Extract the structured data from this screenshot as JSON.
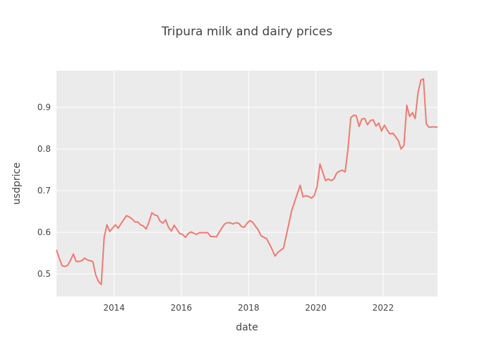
{
  "chart_data": {
    "type": "line",
    "title": "Tripura milk and dairy prices",
    "xlabel": "date",
    "ylabel": "usdprice",
    "xlim": [
      "2012-04-15",
      "2023-08-15"
    ],
    "ylim": [
      0.446,
      0.988
    ],
    "grid": true,
    "x_ticks": [
      "2014",
      "2016",
      "2018",
      "2020",
      "2022"
    ],
    "y_ticks": [
      0.5,
      0.6,
      0.7,
      0.8,
      0.9
    ],
    "y_tick_labels": [
      "0.5",
      "0.6",
      "0.7",
      "0.8",
      "0.9"
    ],
    "colors": {
      "line": "#ef7a72",
      "plot_bg": "#ebebeb",
      "grid": "#ffffff"
    },
    "series": [
      {
        "x": [
          "2012-04-15",
          "2012-05-15",
          "2012-06-15",
          "2012-07-15",
          "2012-08-15",
          "2012-09-15",
          "2012-10-15",
          "2012-11-15",
          "2012-12-15",
          "2013-01-15",
          "2013-02-15",
          "2013-03-15",
          "2013-04-15",
          "2013-05-15",
          "2013-06-15",
          "2013-07-15",
          "2013-08-15",
          "2013-09-15",
          "2013-10-15",
          "2013-11-15",
          "2013-12-15",
          "2014-01-15",
          "2014-02-15",
          "2014-03-15",
          "2014-04-15",
          "2014-05-15",
          "2014-06-15",
          "2014-07-15",
          "2014-08-15",
          "2014-09-15",
          "2014-10-15",
          "2014-11-15",
          "2014-12-15",
          "2015-01-15",
          "2015-02-15",
          "2015-03-15",
          "2015-04-15",
          "2015-05-15",
          "2015-06-15",
          "2015-07-15",
          "2015-08-15",
          "2015-09-15",
          "2015-10-15",
          "2015-11-15",
          "2015-12-15",
          "2016-01-15",
          "2016-02-15",
          "2016-03-15",
          "2016-04-15",
          "2016-05-15",
          "2016-06-15",
          "2016-07-15",
          "2016-08-15",
          "2016-09-15",
          "2016-10-15",
          "2016-11-15",
          "2016-12-15",
          "2017-01-15",
          "2017-02-15",
          "2017-03-15",
          "2017-04-15",
          "2017-05-15",
          "2017-06-15",
          "2017-07-15",
          "2017-08-15",
          "2017-09-15",
          "2017-10-15",
          "2017-11-15",
          "2017-12-15",
          "2018-01-15",
          "2018-02-15",
          "2018-03-15",
          "2018-04-15",
          "2018-05-15",
          "2018-06-15",
          "2018-07-15",
          "2018-08-15",
          "2018-09-15",
          "2018-10-15",
          "2018-11-15",
          "2018-12-15",
          "2019-01-15",
          "2019-04-15",
          "2019-07-15",
          "2019-08-15",
          "2019-09-15",
          "2019-10-15",
          "2019-11-15",
          "2019-12-15",
          "2020-01-15",
          "2020-02-15",
          "2020-03-15",
          "2020-04-15",
          "2020-05-15",
          "2020-06-15",
          "2020-07-15",
          "2020-08-15",
          "2020-09-15",
          "2020-10-15",
          "2020-11-15",
          "2020-12-15",
          "2021-01-15",
          "2021-02-15",
          "2021-03-15",
          "2021-04-15",
          "2021-05-15",
          "2021-06-15",
          "2021-07-15",
          "2021-08-15",
          "2021-09-15",
          "2021-10-15",
          "2021-11-15",
          "2021-12-15",
          "2022-01-15",
          "2022-02-15",
          "2022-03-15",
          "2022-04-15",
          "2022-05-15",
          "2022-06-15",
          "2022-07-15",
          "2022-08-15",
          "2022-09-15",
          "2022-10-15",
          "2022-11-15",
          "2022-12-15",
          "2023-01-15",
          "2023-02-15",
          "2023-03-15",
          "2023-04-15",
          "2023-05-15",
          "2023-06-15",
          "2023-07-15",
          "2023-08-15"
        ],
        "y": [
          0.558,
          0.538,
          0.52,
          0.518,
          0.521,
          0.533,
          0.548,
          0.53,
          0.53,
          0.532,
          0.538,
          0.534,
          0.532,
          0.53,
          0.498,
          0.482,
          0.475,
          0.588,
          0.618,
          0.602,
          0.61,
          0.618,
          0.61,
          0.62,
          0.63,
          0.64,
          0.637,
          0.632,
          0.625,
          0.625,
          0.618,
          0.615,
          0.608,
          0.625,
          0.647,
          0.642,
          0.64,
          0.627,
          0.622,
          0.63,
          0.612,
          0.603,
          0.617,
          0.607,
          0.597,
          0.595,
          0.588,
          0.597,
          0.601,
          0.598,
          0.595,
          0.599,
          0.599,
          0.599,
          0.599,
          0.59,
          0.59,
          0.589,
          0.6,
          0.61,
          0.62,
          0.623,
          0.623,
          0.62,
          0.623,
          0.622,
          0.614,
          0.612,
          0.622,
          0.628,
          0.624,
          0.615,
          0.606,
          0.592,
          0.588,
          0.585,
          0.572,
          0.558,
          0.543,
          0.552,
          0.557,
          0.562,
          0.653,
          0.713,
          0.685,
          0.688,
          0.686,
          0.682,
          0.688,
          0.71,
          0.764,
          0.745,
          0.724,
          0.728,
          0.724,
          0.728,
          0.742,
          0.747,
          0.749,
          0.745,
          0.8,
          0.875,
          0.881,
          0.88,
          0.854,
          0.872,
          0.873,
          0.858,
          0.868,
          0.87,
          0.855,
          0.862,
          0.843,
          0.857,
          0.845,
          0.836,
          0.838,
          0.83,
          0.82,
          0.8,
          0.808,
          0.905,
          0.878,
          0.887,
          0.873,
          0.935,
          0.965,
          0.968,
          0.86,
          0.852,
          0.853,
          0.853,
          0.852
        ]
      }
    ]
  }
}
